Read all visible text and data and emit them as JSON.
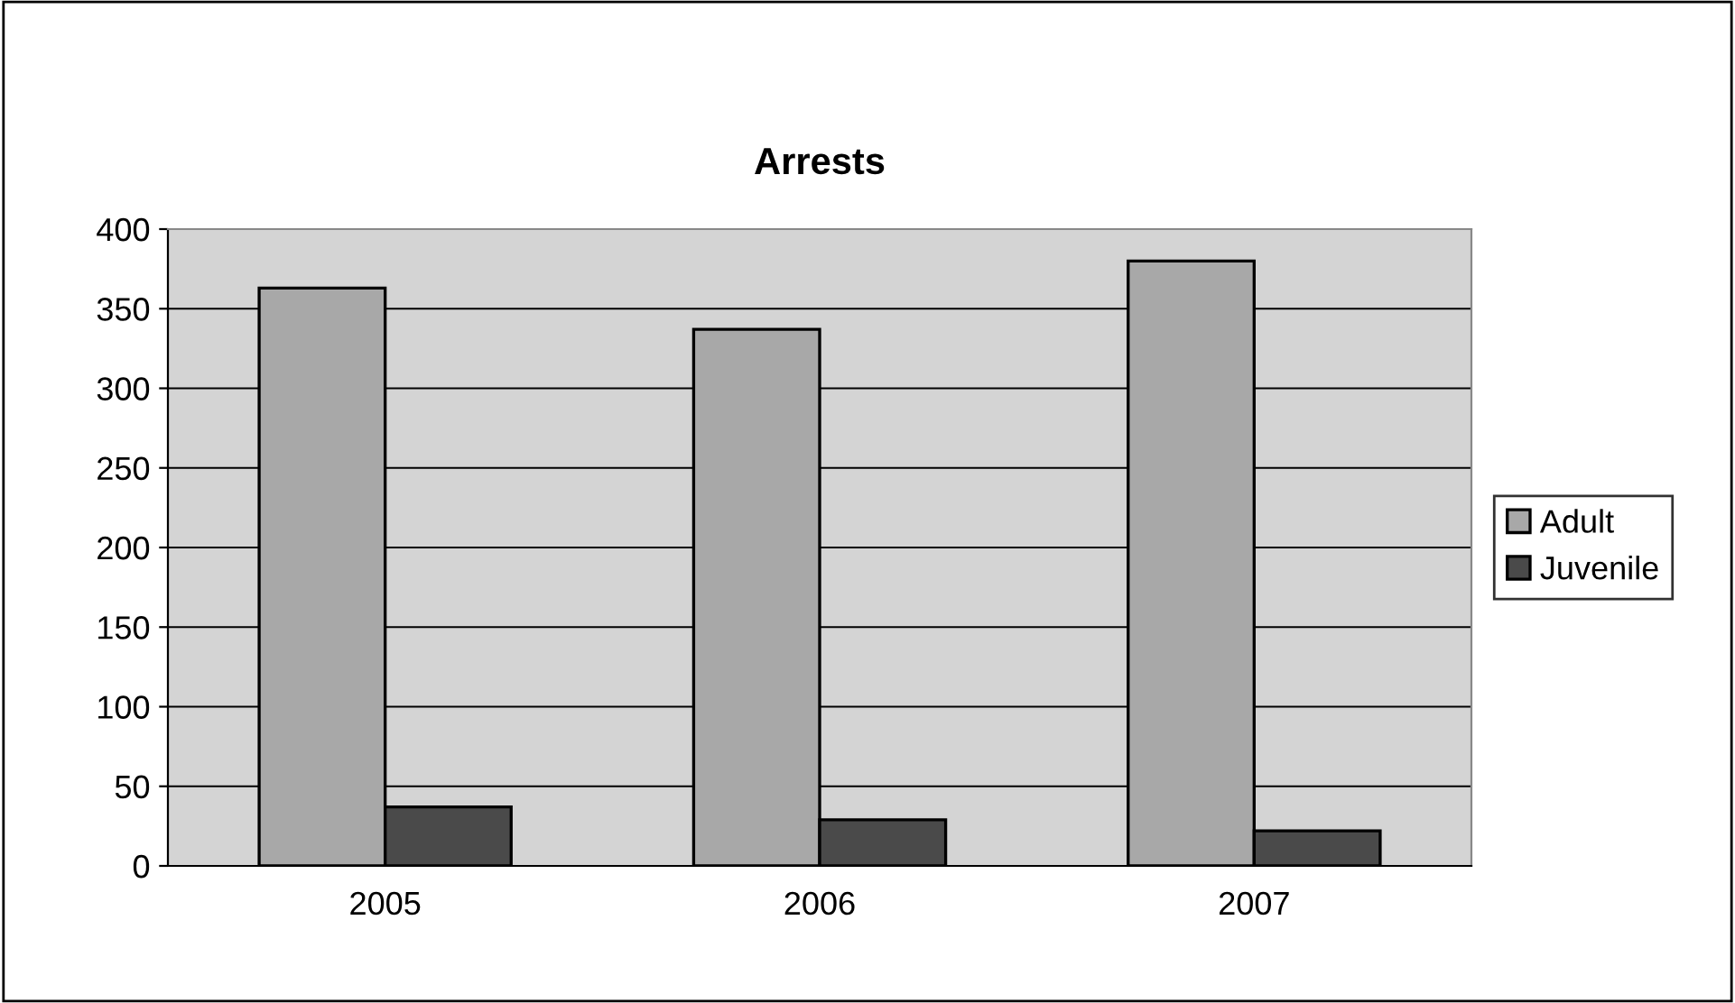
{
  "chart_data": {
    "type": "bar",
    "title": "Arrests",
    "categories": [
      "2005",
      "2006",
      "2007"
    ],
    "series": [
      {
        "name": "Adult",
        "color": "#a8a8a8",
        "values": [
          363,
          337,
          380
        ]
      },
      {
        "name": "Juvenile",
        "color": "#4a4a4a",
        "values": [
          37,
          29,
          22
        ]
      }
    ],
    "ylim": [
      0,
      400
    ],
    "yticks": [
      0,
      50,
      100,
      150,
      200,
      250,
      300,
      350,
      400
    ],
    "grid": "y",
    "legend": "right"
  }
}
